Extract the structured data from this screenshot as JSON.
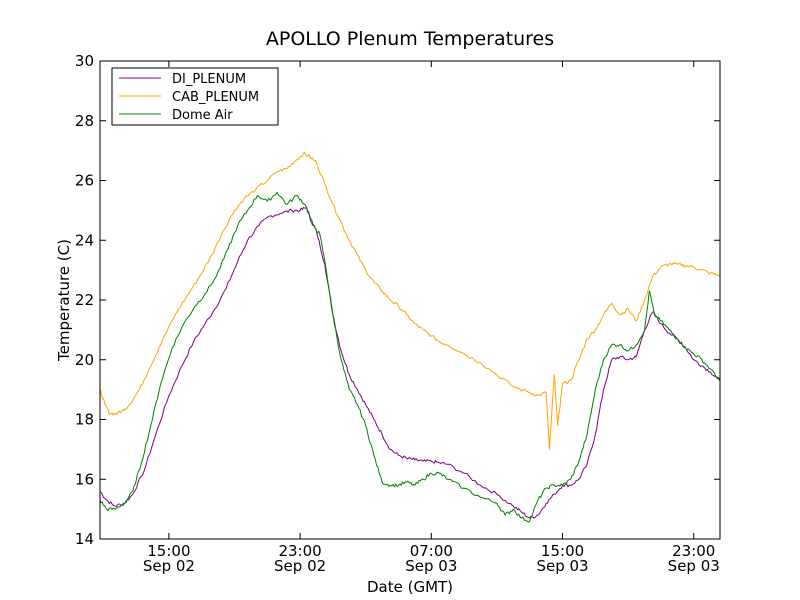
{
  "chart_data": {
    "type": "line",
    "title": "APOLLO Plenum Temperatures",
    "xlabel": "Date (GMT)",
    "ylabel": "Temperature (C)",
    "xlim": [
      10.8,
      48.6
    ],
    "ylim": [
      14,
      30
    ],
    "legend_position": "top-left",
    "x_unit": "hours since Sep 02 00:00 GMT",
    "y_ticks": [
      {
        "value": 14,
        "label": "14"
      },
      {
        "value": 16,
        "label": "16"
      },
      {
        "value": 18,
        "label": "18"
      },
      {
        "value": 20,
        "label": "20"
      },
      {
        "value": 22,
        "label": "22"
      },
      {
        "value": 24,
        "label": "24"
      },
      {
        "value": 26,
        "label": "26"
      },
      {
        "value": 28,
        "label": "28"
      },
      {
        "value": 30,
        "label": "30"
      }
    ],
    "x_ticks": [
      {
        "value": 15,
        "time": "15:00",
        "date": "Sep 02"
      },
      {
        "value": 23,
        "time": "23:00",
        "date": "Sep 02"
      },
      {
        "value": 31,
        "time": "07:00",
        "date": "Sep 03"
      },
      {
        "value": 39,
        "time": "15:00",
        "date": "Sep 03"
      },
      {
        "value": 47,
        "time": "23:00",
        "date": "Sep 03"
      }
    ],
    "series": [
      {
        "name": "DI_PLENUM",
        "color": "#800080",
        "x": [
          10.8,
          11.2,
          11.7,
          12.3,
          12.8,
          13.5,
          14.2,
          15.0,
          15.8,
          16.5,
          17.2,
          17.8,
          18.5,
          19.2,
          19.8,
          20.5,
          21.1,
          21.8,
          22.5,
          23.0,
          23.4,
          23.7,
          24.0,
          24.5,
          25.0,
          25.5,
          26.0,
          26.5,
          27.0,
          27.5,
          28.0,
          28.5,
          29.0,
          29.5,
          30.0,
          30.5,
          31.0,
          31.5,
          32.0,
          33.0,
          34.0,
          35.0,
          36.0,
          36.5,
          37.0,
          37.5,
          38.0,
          38.5,
          39.0,
          39.5,
          40.0,
          40.5,
          41.0,
          41.5,
          42.0,
          42.5,
          43.0,
          43.5,
          44.0,
          44.5,
          45.0,
          45.5,
          46.0,
          46.5,
          47.0,
          47.5,
          48.0,
          48.6
        ],
        "y": [
          15.6,
          15.3,
          15.1,
          15.2,
          15.5,
          16.3,
          17.5,
          18.8,
          19.8,
          20.6,
          21.2,
          21.7,
          22.4,
          23.3,
          24.0,
          24.5,
          24.8,
          24.9,
          25.0,
          25.0,
          25.1,
          24.6,
          24.3,
          23.2,
          21.5,
          20.3,
          19.5,
          19.0,
          18.5,
          18.0,
          17.5,
          17.0,
          16.8,
          16.7,
          16.65,
          16.6,
          16.6,
          16.55,
          16.5,
          16.2,
          15.8,
          15.5,
          15.1,
          14.9,
          14.7,
          14.8,
          15.2,
          15.5,
          15.8,
          15.8,
          16.0,
          16.5,
          17.5,
          19.0,
          20.0,
          20.1,
          20.0,
          20.1,
          21.0,
          21.6,
          21.2,
          20.9,
          20.7,
          20.4,
          20.0,
          19.8,
          19.6,
          19.3
        ]
      },
      {
        "name": "CAB_PLENUM",
        "color": "#ffa500",
        "x": [
          10.8,
          11.1,
          11.4,
          11.8,
          12.2,
          12.6,
          13.2,
          13.8,
          14.4,
          15.0,
          15.6,
          16.3,
          17.0,
          17.6,
          18.3,
          19.0,
          19.6,
          20.3,
          21.0,
          21.6,
          22.2,
          22.8,
          23.2,
          23.6,
          24.0,
          24.5,
          25.0,
          25.5,
          26.0,
          26.5,
          27.0,
          27.5,
          28.0,
          28.5,
          29.0,
          29.5,
          30.0,
          30.5,
          31.0,
          31.5,
          32.0,
          33.0,
          34.0,
          35.0,
          36.0,
          37.0,
          37.5,
          38.0,
          38.2,
          38.5,
          38.7,
          39.0,
          39.5,
          40.0,
          40.5,
          41.0,
          41.5,
          42.0,
          42.5,
          43.0,
          43.5,
          44.0,
          44.5,
          45.0,
          45.5,
          46.0,
          46.5,
          47.0,
          47.5,
          48.0,
          48.6
        ],
        "y": [
          19.0,
          18.5,
          18.2,
          18.2,
          18.3,
          18.5,
          19.0,
          19.7,
          20.4,
          21.1,
          21.7,
          22.3,
          22.9,
          23.5,
          24.3,
          25.0,
          25.4,
          25.7,
          26.0,
          26.3,
          26.4,
          26.7,
          26.9,
          26.8,
          26.6,
          25.9,
          25.2,
          24.6,
          24.0,
          23.5,
          23.0,
          22.6,
          22.3,
          22.0,
          21.8,
          21.5,
          21.2,
          21.0,
          20.8,
          20.6,
          20.5,
          20.2,
          19.9,
          19.5,
          19.1,
          18.9,
          18.8,
          18.9,
          17.0,
          19.5,
          17.8,
          19.2,
          19.3,
          20.0,
          20.7,
          21.0,
          21.5,
          21.9,
          21.5,
          21.7,
          21.3,
          22.0,
          22.8,
          23.1,
          23.2,
          23.2,
          23.15,
          23.1,
          23.0,
          22.9,
          22.8
        ]
      },
      {
        "name": "Dome Air",
        "color": "#008000",
        "x": [
          10.8,
          11.2,
          11.7,
          12.3,
          12.8,
          13.3,
          13.9,
          14.5,
          15.2,
          15.9,
          16.6,
          17.2,
          17.9,
          18.6,
          19.2,
          19.8,
          20.4,
          21.0,
          21.6,
          22.2,
          22.8,
          23.3,
          23.8,
          24.2,
          24.6,
          25.0,
          25.5,
          26.0,
          26.5,
          27.0,
          27.5,
          28.0,
          28.5,
          29.0,
          29.5,
          30.0,
          30.5,
          31.0,
          31.5,
          32.0,
          33.0,
          34.0,
          35.0,
          35.5,
          36.0,
          36.5,
          37.0,
          37.5,
          38.0,
          38.5,
          39.0,
          39.5,
          40.0,
          40.5,
          41.0,
          41.5,
          42.0,
          42.5,
          43.0,
          43.5,
          44.0,
          44.3,
          44.6,
          45.0,
          45.5,
          46.0,
          46.5,
          47.0,
          47.5,
          48.0,
          48.6
        ],
        "y": [
          15.3,
          15.0,
          15.0,
          15.2,
          15.6,
          16.5,
          17.8,
          19.2,
          20.4,
          21.2,
          21.8,
          22.2,
          22.8,
          23.7,
          24.5,
          25.0,
          25.5,
          25.3,
          25.6,
          25.2,
          25.5,
          25.2,
          24.5,
          24.2,
          23.0,
          21.5,
          20.0,
          19.0,
          18.5,
          17.8,
          16.8,
          15.9,
          15.8,
          15.8,
          15.9,
          15.8,
          16.0,
          16.2,
          16.2,
          16.0,
          15.7,
          15.4,
          15.2,
          14.8,
          15.0,
          14.7,
          14.6,
          15.3,
          15.7,
          15.8,
          15.8,
          16.0,
          16.6,
          17.5,
          19.0,
          20.0,
          20.5,
          20.5,
          20.3,
          20.5,
          21.0,
          22.3,
          21.5,
          21.3,
          21.0,
          20.7,
          20.4,
          20.2,
          20.0,
          19.7,
          19.3
        ]
      }
    ]
  }
}
